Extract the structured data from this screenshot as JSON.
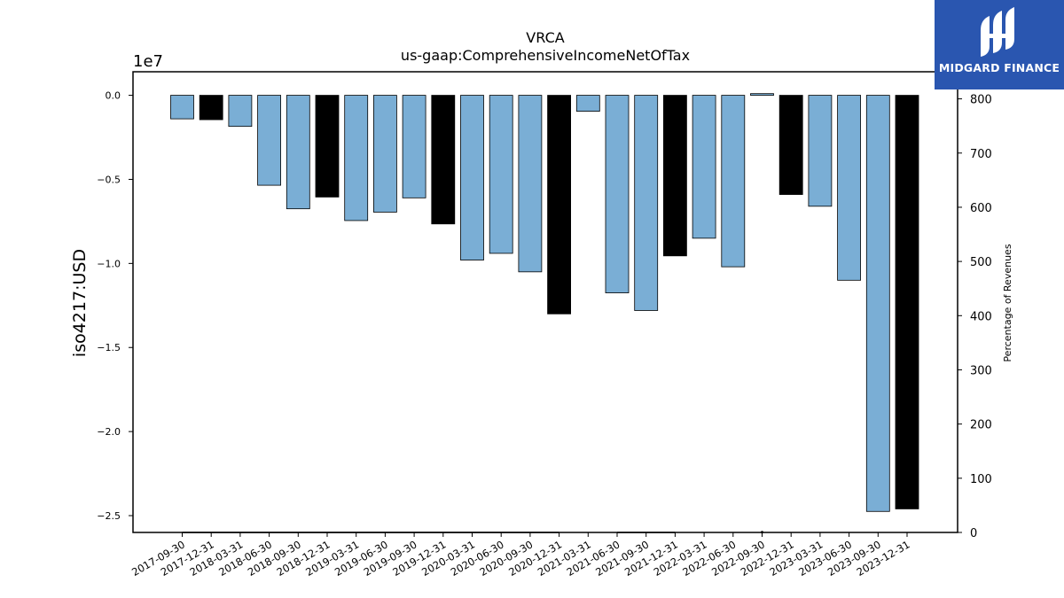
{
  "chart_data": {
    "type": "bar",
    "title": "VRCA",
    "subtitle": "us-gaap:ComprehensiveIncomeNetOfTax",
    "ylabel": "iso4217:USD",
    "y_offset_label": "1e7",
    "y2label": "Percentage of Revenues",
    "ylim": [
      -26000000.0,
      1400000.0
    ],
    "y2lim": [
      0,
      850
    ],
    "y_ticks": [
      0.0,
      -0.5,
      -1.0,
      -1.5,
      -2.0,
      -2.5
    ],
    "y_tick_labels": [
      "0.0",
      "−0.5",
      "−1.0",
      "−1.5",
      "−2.0",
      "−2.5"
    ],
    "y2_ticks": [
      0,
      100,
      200,
      300,
      400,
      500,
      600,
      700,
      800
    ],
    "grid": false,
    "categories": [
      "2017-09-30",
      "2017-12-31",
      "2018-03-31",
      "2018-06-30",
      "2018-09-30",
      "2018-12-31",
      "2019-03-31",
      "2019-06-30",
      "2019-09-30",
      "2019-12-31",
      "2020-03-31",
      "2020-06-30",
      "2020-09-30",
      "2020-12-31",
      "2021-03-31",
      "2021-06-30",
      "2021-09-30",
      "2021-12-31",
      "2022-03-31",
      "2022-06-30",
      "2022-09-30",
      "2022-12-31",
      "2023-03-31",
      "2023-06-30",
      "2023-09-30",
      "2023-12-31"
    ],
    "values": [
      -1400000,
      -1450000,
      -1850000,
      -5350000,
      -6750000,
      -6050000,
      -7450000,
      -6950000,
      -6100000,
      -7650000,
      -9800000,
      -9400000,
      -10500000,
      -13000000,
      -950000,
      -11750000,
      -12800000,
      -9550000,
      -8500000,
      -10200000,
      100000,
      -5900000,
      -6600000,
      -11000000,
      -24750000,
      -24600000
    ],
    "bar_colors": [
      "#7aaed5",
      "#000000",
      "#7aaed5",
      "#7aaed5",
      "#7aaed5",
      "#000000",
      "#7aaed5",
      "#7aaed5",
      "#7aaed5",
      "#000000",
      "#7aaed5",
      "#7aaed5",
      "#7aaed5",
      "#000000",
      "#7aaed5",
      "#7aaed5",
      "#7aaed5",
      "#000000",
      "#7aaed5",
      "#7aaed5",
      "#7aaed5",
      "#000000",
      "#7aaed5",
      "#7aaed5",
      "#7aaed5",
      "#000000"
    ],
    "percentage_of_revenues": [
      0,
      0,
      0,
      0,
      0,
      0,
      0,
      0,
      0,
      0,
      0,
      0,
      0,
      0,
      null,
      0,
      0,
      0,
      null,
      null,
      0.5,
      null,
      null,
      null,
      null,
      null
    ]
  },
  "colors": {
    "quarter_bar": "#7aaed5",
    "year_end_bar": "#000000",
    "logo_bg": "#2a56b0"
  },
  "logo": {
    "text": "MIDGARD FINANCE",
    "icon": "midgard-logo-icon"
  }
}
